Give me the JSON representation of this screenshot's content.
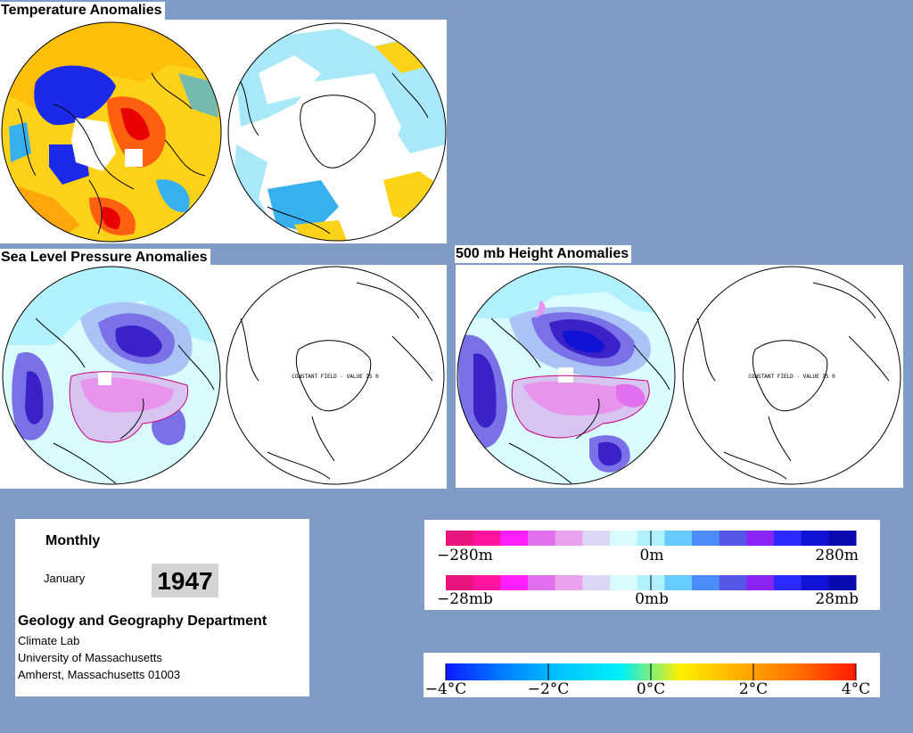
{
  "sections": {
    "temperature_title": "Temperature Anomalies",
    "slp_title": "Sea Level Pressure Anomalies",
    "height_title": "500 mb Height Anomalies"
  },
  "constant_field_text": "CONSTANT FIELD - VALUE IS 0",
  "info": {
    "period": "Monthly",
    "month": "January",
    "year": "1947",
    "department": "Geology and Geography Department",
    "lab": "Climate Lab",
    "university": "University of Massachusetts",
    "address": "Amherst, Massachusetts 01003"
  },
  "legend_height": {
    "colors": [
      "#e8157f",
      "#ff14a0",
      "#ff20ff",
      "#e070ee",
      "#eaa2ef",
      "#ddd6f4",
      "#d8fcff",
      "#b0f0ff",
      "#66ccff",
      "#4c8cf8",
      "#5555e8",
      "#8a24f4",
      "#2a2aff",
      "#1212d4",
      "#0a0ab0"
    ],
    "labels": [
      "−280m",
      "0m",
      "280m"
    ]
  },
  "legend_pressure": {
    "colors": [
      "#e8157f",
      "#ff14a0",
      "#ff20ff",
      "#e070ee",
      "#eaa2ef",
      "#ddd6f4",
      "#d8fcff",
      "#b0f0ff",
      "#66ccff",
      "#4c8cf8",
      "#5555e8",
      "#8a24f4",
      "#2a2aff",
      "#1212d4",
      "#0a0ab0"
    ],
    "labels": [
      "−28mb",
      "0mb",
      "28mb"
    ]
  },
  "legend_temperature": {
    "stops": [
      "#0a1aff",
      "#0080ff",
      "#00c8ff",
      "#00f0f8",
      "#fff000",
      "#ffb000",
      "#ff7000",
      "#ff1a00"
    ],
    "labels": [
      "−4°C",
      "−2°C",
      "0°C",
      "2°C",
      "4°C"
    ]
  },
  "map_colors": {
    "cold_strong": "#1a2ae8",
    "cold": "#38b0f0",
    "cool": "#a8e8f8",
    "warm": "#ffd21a",
    "hot": "#ff6010",
    "very_hot": "#e80000",
    "neg_strong": "#3a22c8",
    "neg": "#7a70e8",
    "neg_light": "#aac2f4",
    "pos": "#e894ec",
    "pos_light": "#d8c4f0"
  }
}
